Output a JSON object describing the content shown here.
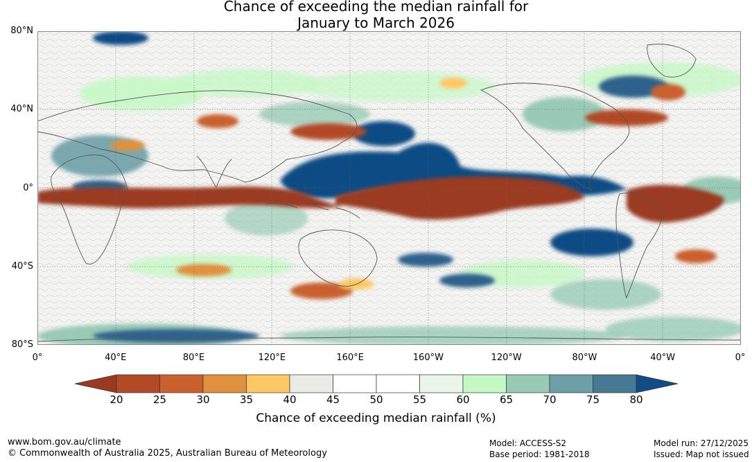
{
  "title": {
    "line1": "Chance of exceeding the median rainfall for",
    "line2": "January to March 2026"
  },
  "map": {
    "lat_labels": [
      "80°N",
      "40°N",
      "0°",
      "40°S",
      "80°S"
    ],
    "lat_values": [
      80,
      40,
      0,
      -40,
      -80
    ],
    "lon_labels": [
      "0°",
      "40°E",
      "80°E",
      "120°E",
      "160°E",
      "160°W",
      "120°W",
      "80°W",
      "40°W",
      "0°"
    ],
    "lon_values": [
      0,
      40,
      80,
      120,
      160,
      200,
      240,
      280,
      320,
      360
    ],
    "lat_range": [
      -80,
      80
    ],
    "lon_range": [
      0,
      360
    ],
    "grid": true
  },
  "colorbar": {
    "ticks": [
      "20",
      "25",
      "30",
      "35",
      "40",
      "45",
      "50",
      "55",
      "60",
      "65",
      "70",
      "75",
      "80"
    ],
    "colors": [
      "#b24a25",
      "#c9602d",
      "#e1913e",
      "#fec765",
      "#ebebe6",
      "#ffffff",
      "#ffffff",
      "#eaf6e9",
      "#c6f8c6",
      "#99cab5",
      "#6da0a6",
      "#467a92"
    ],
    "under_color": "#9a3a20",
    "over_color": "#104c85",
    "label": "Chance of exceeding median rainfall (%)"
  },
  "footer": {
    "website": "www.bom.gov.au/climate",
    "copyright": "© Commonwealth of Australia 2025, Australian Bureau of Meteorology",
    "model": "Model: ACCESS-S2",
    "base_period": "Base period: 1981-2018",
    "model_run": "Model run: 27/12/2025",
    "issued": "Issued: Map not issued"
  }
}
